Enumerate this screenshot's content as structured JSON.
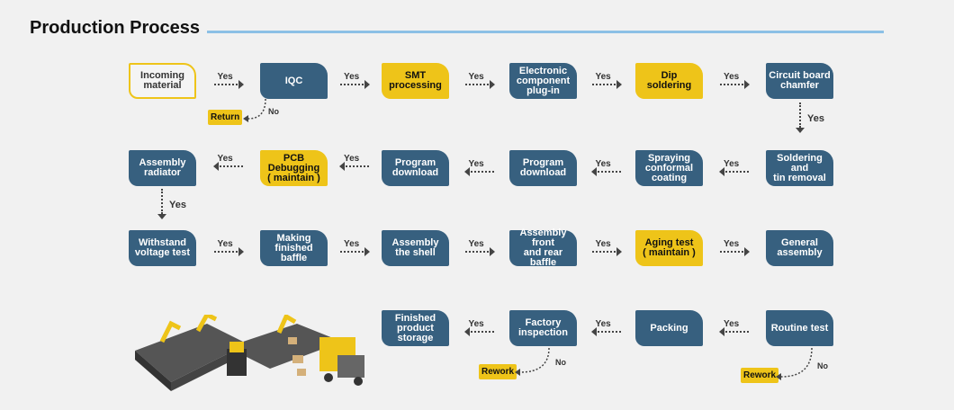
{
  "title": "Production Process",
  "colors": {
    "blue": "#37607f",
    "yellow": "#eec419",
    "title_line": "#8cc0e6"
  },
  "nodes": [
    {
      "label": "Incoming\nmaterial",
      "style": "outline"
    },
    {
      "label": "IQC",
      "style": "blue"
    },
    {
      "label": "SMT\nprocessing",
      "style": "yellow"
    },
    {
      "label": "Electronic\ncomponent\nplug-in",
      "style": "blue"
    },
    {
      "label": "Dip soldering",
      "style": "yellow"
    },
    {
      "label": "Circuit board\nchamfer",
      "style": "blue"
    },
    {
      "label": "Assembly\nradiator",
      "style": "blue"
    },
    {
      "label": "PCB Debugging\n( maintain )",
      "style": "yellow"
    },
    {
      "label": "Program\ndownload",
      "style": "blue"
    },
    {
      "label": "Program\ndownload",
      "style": "blue"
    },
    {
      "label": "Spraying\nconformal\ncoating",
      "style": "blue"
    },
    {
      "label": "Soldering and\ntin removal",
      "style": "blue"
    },
    {
      "label": "Withstand\nvoltage test",
      "style": "blue"
    },
    {
      "label": "Making\nfinished baffle",
      "style": "blue"
    },
    {
      "label": "Assembly\nthe shell",
      "style": "blue"
    },
    {
      "label": "Assembly front\nand rear baffle",
      "style": "blue"
    },
    {
      "label": "Aging test\n( maintain )",
      "style": "yellow"
    },
    {
      "label": "General\nassembly",
      "style": "blue"
    },
    {
      "label": "Finished\nproduct\nstorage",
      "style": "blue"
    },
    {
      "label": "Factory\ninspection",
      "style": "blue"
    },
    {
      "label": "Packing",
      "style": "blue"
    },
    {
      "label": "Routine test",
      "style": "blue"
    }
  ],
  "yes_label": "Yes",
  "no_label": "No",
  "tags": [
    "Return",
    "Rework",
    "Rework"
  ]
}
